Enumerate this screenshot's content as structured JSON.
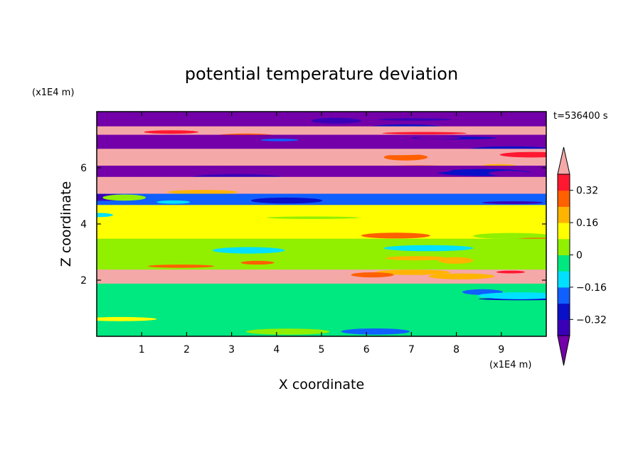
{
  "chart_data": {
    "type": "heatmap",
    "title": "potential temperature deviation",
    "xlabel": "X coordinate",
    "ylabel": "Z coordinate",
    "x_unit": "(x1E4 m)",
    "y_unit": "(x1E4 m)",
    "time_label": "t=536400 s",
    "xlim": [
      0,
      10
    ],
    "ylim": [
      0,
      8
    ],
    "x_ticks": [
      "1",
      "2",
      "3",
      "4",
      "5",
      "6",
      "7",
      "8",
      "9"
    ],
    "y_ticks": [
      "2",
      "4",
      "6"
    ],
    "colorbar": {
      "levels": [
        -0.4,
        -0.32,
        -0.24,
        -0.16,
        -0.08,
        0,
        0.08,
        0.16,
        0.24,
        0.32,
        0.4
      ],
      "tick_labels": [
        "0.32",
        "0.16",
        "0",
        "−0.16",
        "−0.32"
      ],
      "tick_values": [
        0.32,
        0.16,
        0,
        -0.16,
        -0.32
      ],
      "colors": [
        "#7300a8",
        "#3a00b8",
        "#0a10c8",
        "#1060ff",
        "#00e0ff",
        "#00e880",
        "#90f000",
        "#ffff00",
        "#ffb400",
        "#ff6000",
        "#ff1830",
        "#f5a8a8"
      ],
      "extend": "both"
    },
    "layers": [
      {
        "z_range": [
          7.4,
          8.0
        ],
        "value": -0.45
      },
      {
        "z_range": [
          7.1,
          7.4
        ],
        "value": 0.45
      },
      {
        "z_range": [
          6.6,
          7.1
        ],
        "value": -0.45
      },
      {
        "z_range": [
          6.0,
          6.6
        ],
        "value": 0.45
      },
      {
        "z_range": [
          5.6,
          6.0
        ],
        "value": -0.45
      },
      {
        "z_range": [
          5.0,
          5.6
        ],
        "value": 0.45
      },
      {
        "z_range": [
          4.6,
          5.0
        ],
        "value": -0.2
      },
      {
        "z_range": [
          3.4,
          4.6
        ],
        "value": 0.08
      },
      {
        "z_range": [
          2.3,
          3.4
        ],
        "value": 0.05
      },
      {
        "z_range": [
          1.8,
          2.3
        ],
        "value": 0.4
      },
      {
        "z_range": [
          0.0,
          1.8
        ],
        "value": -0.04
      }
    ]
  }
}
